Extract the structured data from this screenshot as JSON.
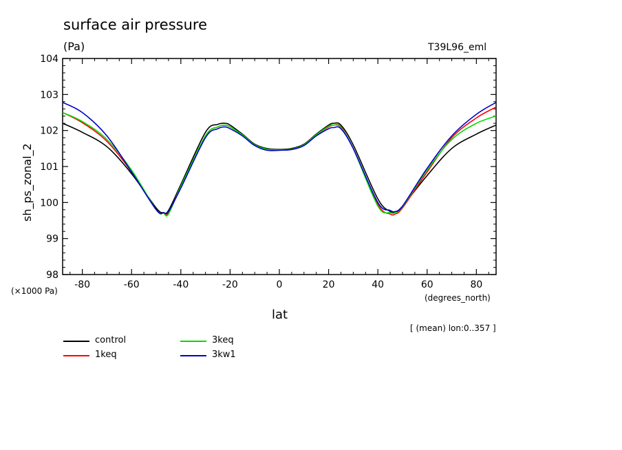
{
  "header": {
    "title": "surface air pressure",
    "units": "(Pa)",
    "run_id": "T39L96_eml",
    "x_units": "(degrees_north)",
    "y_units": "(×1000 Pa)",
    "note": "[ (mean) lon:0..357 ]"
  },
  "chart_data": {
    "type": "line",
    "xlabel": "lat",
    "ylabel": "sh_ps_zonal_2",
    "xlim": [
      -88,
      88
    ],
    "ylim": [
      98,
      104
    ],
    "x_ticks": [
      -80,
      -60,
      -40,
      -20,
      0,
      20,
      40,
      60,
      80
    ],
    "x_tick_labels": [
      "-80",
      "-60",
      "-40",
      "-20",
      "0",
      "20",
      "40",
      "60",
      "80"
    ],
    "y_ticks": [
      98,
      99,
      100,
      101,
      102,
      103,
      104
    ],
    "y_tick_labels": [
      "98",
      "99",
      "100",
      "101",
      "102",
      "103",
      "104"
    ],
    "grid": false,
    "legend_position": "below",
    "x": [
      -88,
      -80,
      -70,
      -60,
      -50,
      -47,
      -45,
      -40,
      -30,
      -25,
      -22,
      -20,
      -15,
      -10,
      -5,
      0,
      5,
      10,
      15,
      20,
      22,
      25,
      30,
      40,
      45,
      47,
      50,
      60,
      70,
      80,
      88
    ],
    "series": [
      {
        "name": "control",
        "color": "#000000",
        "values": [
          102.2,
          101.95,
          101.55,
          100.8,
          99.85,
          99.72,
          99.78,
          100.5,
          101.95,
          102.17,
          102.2,
          102.15,
          101.9,
          101.62,
          101.5,
          101.48,
          101.5,
          101.62,
          101.9,
          102.15,
          102.2,
          102.15,
          101.6,
          100.1,
          99.75,
          99.74,
          99.9,
          100.75,
          101.5,
          101.9,
          102.15
        ]
      },
      {
        "name": "1keq",
        "color": "#ff0000",
        "values": [
          102.5,
          102.22,
          101.7,
          100.85,
          99.8,
          99.72,
          99.72,
          100.45,
          101.85,
          102.1,
          102.15,
          102.1,
          101.88,
          101.6,
          101.48,
          101.47,
          101.48,
          101.6,
          101.88,
          102.1,
          102.15,
          102.1,
          101.5,
          99.95,
          99.68,
          99.68,
          99.85,
          100.85,
          101.8,
          102.35,
          102.65
        ]
      },
      {
        "name": "3keq",
        "color": "#00dd00",
        "values": [
          102.5,
          102.25,
          101.75,
          100.9,
          99.8,
          99.7,
          99.68,
          100.45,
          101.85,
          102.1,
          102.15,
          102.1,
          101.88,
          101.6,
          101.48,
          101.47,
          101.48,
          101.6,
          101.88,
          102.12,
          102.15,
          102.08,
          101.5,
          99.9,
          99.72,
          99.72,
          99.88,
          100.9,
          101.75,
          102.2,
          102.4
        ]
      },
      {
        "name": "3kw1",
        "color": "#0000cc",
        "values": [
          102.78,
          102.5,
          101.85,
          100.85,
          99.8,
          99.72,
          99.75,
          100.4,
          101.8,
          102.05,
          102.1,
          102.05,
          101.85,
          101.58,
          101.45,
          101.45,
          101.47,
          101.58,
          101.85,
          102.05,
          102.08,
          102.05,
          101.5,
          100.0,
          99.78,
          99.75,
          99.9,
          100.95,
          101.85,
          102.45,
          102.78
        ]
      }
    ]
  }
}
